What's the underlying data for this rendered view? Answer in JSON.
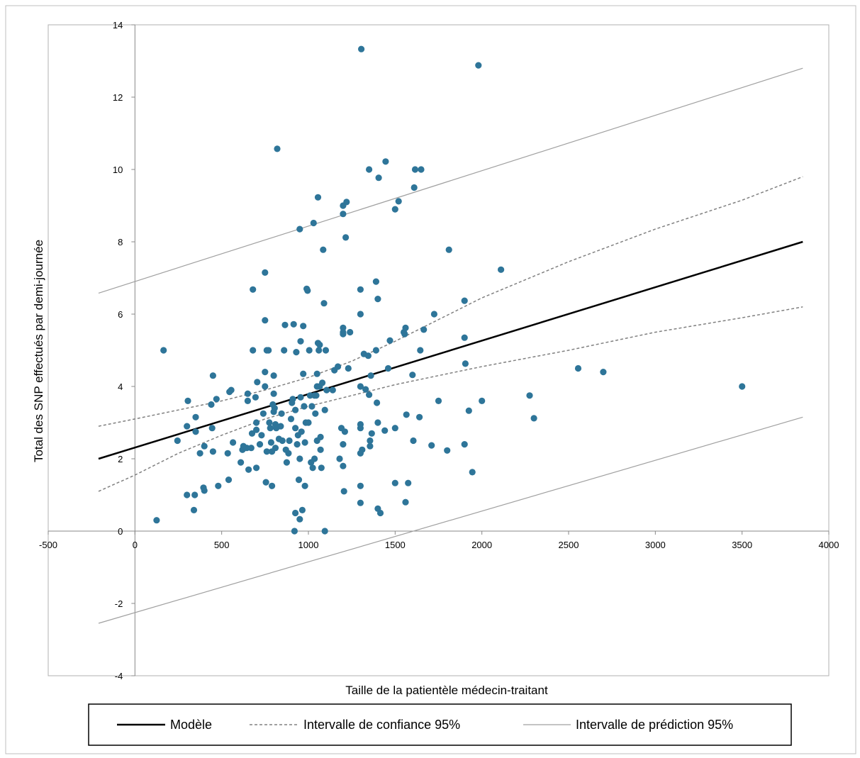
{
  "chart_data": {
    "type": "scatter",
    "xlabel": "Taille de la patientèle médecin-traitant",
    "ylabel": "Total des SNP effectués par demi-journée",
    "xlim": [
      -500,
      4000
    ],
    "ylim": [
      -4,
      14
    ],
    "xticks": [
      -500,
      0,
      500,
      1000,
      1500,
      2000,
      2500,
      3000,
      3500,
      4000
    ],
    "yticks": [
      -4,
      -2,
      0,
      2,
      4,
      6,
      8,
      10,
      12,
      14
    ],
    "grid": false,
    "legend_position": "bottom",
    "colors": {
      "points": "#2e7599",
      "model": "#000000",
      "confidence": "#808080",
      "prediction": "#a0a0a0",
      "frame": "#aaaaaa"
    },
    "series": [
      {
        "name": "Modèle",
        "style": "solid",
        "x": [
          -210,
          3850
        ],
        "y": [
          2.0,
          8.0
        ]
      },
      {
        "name": "Intervalle de confiance 95%",
        "style": "dashed",
        "x": [
          -210,
          0,
          250,
          500,
          750,
          1000,
          1250,
          1500,
          1750,
          2000,
          2500,
          3000,
          3500,
          3850
        ],
        "y": [
          2.9,
          3.1,
          3.35,
          3.6,
          3.9,
          4.25,
          4.7,
          5.25,
          5.85,
          6.45,
          7.45,
          8.35,
          9.15,
          9.8
        ]
      },
      {
        "name": "Intervalle de confiance 95%",
        "style": "dashed",
        "x": [
          -210,
          0,
          250,
          500,
          750,
          1000,
          1250,
          1500,
          1750,
          2000,
          2500,
          3000,
          3500,
          3850
        ],
        "y": [
          1.1,
          1.55,
          2.15,
          2.65,
          3.1,
          3.45,
          3.75,
          4.05,
          4.3,
          4.55,
          5.0,
          5.5,
          5.9,
          6.2
        ]
      },
      {
        "name": "Intervalle de prédiction 95%",
        "style": "solid-thin",
        "x": [
          -210,
          3850
        ],
        "y": [
          6.58,
          12.8
        ]
      },
      {
        "name": "Intervalle de prédiction 95%",
        "style": "solid-thin",
        "x": [
          -210,
          3850
        ],
        "y": [
          -2.55,
          3.15
        ]
      }
    ],
    "points": [
      [
        125,
        0.3
      ],
      [
        165,
        5.0
      ],
      [
        245,
        2.5
      ],
      [
        300,
        1.0
      ],
      [
        300,
        2.9
      ],
      [
        305,
        3.6
      ],
      [
        340,
        0.58
      ],
      [
        345,
        1.0
      ],
      [
        350,
        2.75
      ],
      [
        350,
        3.15
      ],
      [
        375,
        2.15
      ],
      [
        395,
        1.2
      ],
      [
        400,
        1.12
      ],
      [
        400,
        2.35
      ],
      [
        440,
        3.5
      ],
      [
        445,
        2.85
      ],
      [
        450,
        2.2
      ],
      [
        450,
        4.3
      ],
      [
        470,
        3.65
      ],
      [
        480,
        1.25
      ],
      [
        535,
        2.15
      ],
      [
        540,
        1.42
      ],
      [
        545,
        3.85
      ],
      [
        555,
        3.9
      ],
      [
        565,
        2.45
      ],
      [
        610,
        1.9
      ],
      [
        620,
        2.25
      ],
      [
        625,
        2.35
      ],
      [
        645,
        2.3
      ],
      [
        650,
        3.8
      ],
      [
        650,
        3.6
      ],
      [
        655,
        1.7
      ],
      [
        670,
        2.3
      ],
      [
        675,
        2.7
      ],
      [
        680,
        6.68
      ],
      [
        680,
        5.0
      ],
      [
        695,
        3.7
      ],
      [
        700,
        1.75
      ],
      [
        700,
        2.8
      ],
      [
        700,
        3.0
      ],
      [
        705,
        4.12
      ],
      [
        720,
        2.4
      ],
      [
        730,
        2.65
      ],
      [
        740,
        3.25
      ],
      [
        750,
        7.15
      ],
      [
        750,
        5.83
      ],
      [
        750,
        4.4
      ],
      [
        750,
        4.0
      ],
      [
        755,
        1.35
      ],
      [
        760,
        2.2
      ],
      [
        760,
        5.0
      ],
      [
        770,
        5.0
      ],
      [
        775,
        3.0
      ],
      [
        780,
        2.85
      ],
      [
        785,
        2.45
      ],
      [
        790,
        1.25
      ],
      [
        790,
        2.2
      ],
      [
        795,
        3.5
      ],
      [
        800,
        3.8
      ],
      [
        800,
        3.3
      ],
      [
        800,
        4.3
      ],
      [
        805,
        3.4
      ],
      [
        810,
        2.3
      ],
      [
        810,
        2.95
      ],
      [
        815,
        2.85
      ],
      [
        820,
        10.57
      ],
      [
        830,
        2.55
      ],
      [
        840,
        2.9
      ],
      [
        845,
        3.25
      ],
      [
        850,
        2.5
      ],
      [
        860,
        5.0
      ],
      [
        865,
        5.7
      ],
      [
        870,
        2.25
      ],
      [
        875,
        1.9
      ],
      [
        885,
        2.15
      ],
      [
        890,
        2.5
      ],
      [
        900,
        3.1
      ],
      [
        905,
        3.55
      ],
      [
        910,
        3.65
      ],
      [
        915,
        5.72
      ],
      [
        920,
        0.0
      ],
      [
        925,
        0.5
      ],
      [
        925,
        2.85
      ],
      [
        925,
        3.35
      ],
      [
        930,
        4.95
      ],
      [
        935,
        2.4
      ],
      [
        940,
        2.65
      ],
      [
        945,
        1.42
      ],
      [
        950,
        2.0
      ],
      [
        950,
        0.33
      ],
      [
        950,
        8.35
      ],
      [
        955,
        5.25
      ],
      [
        955,
        3.7
      ],
      [
        960,
        2.75
      ],
      [
        965,
        0.58
      ],
      [
        970,
        5.67
      ],
      [
        970,
        4.35
      ],
      [
        975,
        3.45
      ],
      [
        980,
        1.25
      ],
      [
        980,
        2.45
      ],
      [
        985,
        3.0
      ],
      [
        990,
        6.7
      ],
      [
        995,
        6.65
      ],
      [
        1000,
        3.0
      ],
      [
        1005,
        5.0
      ],
      [
        1010,
        3.75
      ],
      [
        1015,
        1.9
      ],
      [
        1020,
        3.45
      ],
      [
        1025,
        1.75
      ],
      [
        1030,
        8.52
      ],
      [
        1035,
        2.0
      ],
      [
        1035,
        3.75
      ],
      [
        1040,
        3.25
      ],
      [
        1045,
        3.75
      ],
      [
        1050,
        4.35
      ],
      [
        1050,
        2.5
      ],
      [
        1050,
        4.0
      ],
      [
        1055,
        9.23
      ],
      [
        1055,
        5.2
      ],
      [
        1060,
        5.0
      ],
      [
        1065,
        4.0
      ],
      [
        1065,
        5.15
      ],
      [
        1070,
        2.6
      ],
      [
        1070,
        2.25
      ],
      [
        1075,
        1.75
      ],
      [
        1080,
        4.1
      ],
      [
        1085,
        7.78
      ],
      [
        1090,
        6.3
      ],
      [
        1095,
        3.35
      ],
      [
        1095,
        0.0
      ],
      [
        1100,
        5.0
      ],
      [
        1105,
        3.9
      ],
      [
        1140,
        3.9
      ],
      [
        1150,
        4.45
      ],
      [
        1170,
        4.55
      ],
      [
        1180,
        2.0
      ],
      [
        1190,
        2.85
      ],
      [
        1200,
        1.8
      ],
      [
        1200,
        2.4
      ],
      [
        1200,
        5.62
      ],
      [
        1200,
        5.45
      ],
      [
        1200,
        5.5
      ],
      [
        1200,
        9.0
      ],
      [
        1200,
        8.77
      ],
      [
        1205,
        1.1
      ],
      [
        1210,
        2.75
      ],
      [
        1215,
        8.12
      ],
      [
        1220,
        9.1
      ],
      [
        1230,
        4.5
      ],
      [
        1240,
        5.5
      ],
      [
        1300,
        1.25
      ],
      [
        1300,
        0.78
      ],
      [
        1300,
        2.15
      ],
      [
        1300,
        2.95
      ],
      [
        1300,
        2.85
      ],
      [
        1300,
        4.0
      ],
      [
        1300,
        6.0
      ],
      [
        1300,
        6.68
      ],
      [
        1305,
        13.33
      ],
      [
        1310,
        2.25
      ],
      [
        1320,
        4.9
      ],
      [
        1330,
        3.92
      ],
      [
        1345,
        4.85
      ],
      [
        1350,
        10.0
      ],
      [
        1350,
        3.77
      ],
      [
        1355,
        2.5
      ],
      [
        1355,
        2.35
      ],
      [
        1360,
        4.3
      ],
      [
        1365,
        2.7
      ],
      [
        1390,
        6.9
      ],
      [
        1390,
        5.0
      ],
      [
        1395,
        3.55
      ],
      [
        1400,
        0.62
      ],
      [
        1400,
        6.42
      ],
      [
        1400,
        3.0
      ],
      [
        1405,
        9.77
      ],
      [
        1415,
        0.5
      ],
      [
        1440,
        2.78
      ],
      [
        1445,
        10.22
      ],
      [
        1460,
        4.5
      ],
      [
        1470,
        5.27
      ],
      [
        1500,
        8.9
      ],
      [
        1500,
        1.33
      ],
      [
        1500,
        2.85
      ],
      [
        1520,
        9.12
      ],
      [
        1550,
        5.5
      ],
      [
        1555,
        5.45
      ],
      [
        1560,
        5.62
      ],
      [
        1560,
        0.8
      ],
      [
        1565,
        3.22
      ],
      [
        1575,
        1.33
      ],
      [
        1600,
        4.32
      ],
      [
        1605,
        2.5
      ],
      [
        1610,
        9.5
      ],
      [
        1615,
        10.0
      ],
      [
        1640,
        3.15
      ],
      [
        1645,
        5.0
      ],
      [
        1650,
        10.0
      ],
      [
        1665,
        5.57
      ],
      [
        1710,
        2.37
      ],
      [
        1725,
        6.0
      ],
      [
        1750,
        3.6
      ],
      [
        1800,
        2.23
      ],
      [
        1810,
        7.78
      ],
      [
        1900,
        2.4
      ],
      [
        1900,
        6.37
      ],
      [
        1900,
        5.35
      ],
      [
        1905,
        4.63
      ],
      [
        1925,
        3.33
      ],
      [
        1945,
        1.63
      ],
      [
        1980,
        12.88
      ],
      [
        2000,
        3.6
      ],
      [
        2110,
        7.23
      ],
      [
        2275,
        3.75
      ],
      [
        2300,
        3.12
      ],
      [
        2555,
        4.5
      ],
      [
        2700,
        4.4
      ],
      [
        3500,
        4.0
      ]
    ]
  }
}
